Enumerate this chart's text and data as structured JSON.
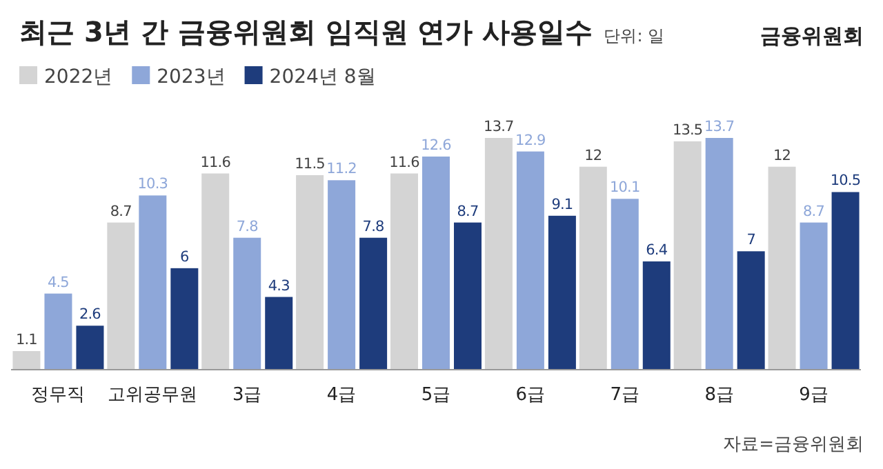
{
  "chart_data": {
    "type": "bar",
    "title": "최근 3년 간 금융위원회 임직원 연가 사용일수",
    "subtitle": "단위: 일",
    "categories": [
      "정무직",
      "고위공무원",
      "3급",
      "4급",
      "5급",
      "6급",
      "7급",
      "8급",
      "9급"
    ],
    "series": [
      {
        "name": "2022년",
        "color": "#d4d4d4",
        "values": [
          1.1,
          8.7,
          11.6,
          11.5,
          11.6,
          13.7,
          12,
          13.5,
          12
        ]
      },
      {
        "name": "2023년",
        "color": "#8ea7d9",
        "values": [
          4.5,
          10.3,
          7.8,
          11.2,
          12.6,
          12.9,
          10.1,
          13.7,
          8.7
        ]
      },
      {
        "name": "2024년 8월",
        "color": "#1e3c7c",
        "values": [
          2.6,
          6,
          4.3,
          7.8,
          8.7,
          9.1,
          6.4,
          7,
          10.5
        ]
      }
    ],
    "data_labels": true,
    "legend": "top left",
    "annotations": [
      "금융위원회",
      "자료=금융위원회"
    ]
  }
}
